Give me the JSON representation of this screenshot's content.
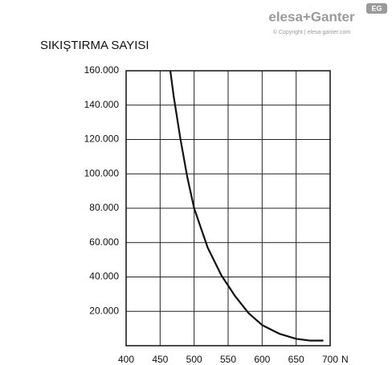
{
  "logo": {
    "brand": "elesa+Ganter",
    "badge": "EG",
    "copyright": "© Copyright | elesa-ganter.com"
  },
  "chart_data": {
    "type": "line",
    "title": "SIKIŞTIRMA SAYISI",
    "x_label": "N",
    "x": [
      465,
      470,
      480,
      490,
      500,
      520,
      540,
      560,
      580,
      600,
      625,
      650,
      670,
      690
    ],
    "series": [
      {
        "name": null,
        "color": "#111111",
        "values": [
          160000,
          145000,
          120000,
          98000,
          80000,
          57000,
          41000,
          29000,
          19000,
          12000,
          7000,
          4000,
          3000,
          3000
        ]
      }
    ],
    "xlim": [
      400,
      700
    ],
    "xticks": [
      400,
      450,
      500,
      550,
      600,
      650,
      700
    ],
    "ylim": [
      0,
      160000
    ],
    "yticks": [
      {
        "value": 20000,
        "label": "20.000"
      },
      {
        "value": 40000,
        "label": "40.000"
      },
      {
        "value": 60000,
        "label": "60.000"
      },
      {
        "value": 80000,
        "label": "80.000"
      },
      {
        "value": 100000,
        "label": "100.000"
      },
      {
        "value": 120000,
        "label": "120.000"
      },
      {
        "value": 140000,
        "label": "140.000"
      },
      {
        "value": 160000,
        "label": "160.000"
      }
    ],
    "grid": true
  }
}
